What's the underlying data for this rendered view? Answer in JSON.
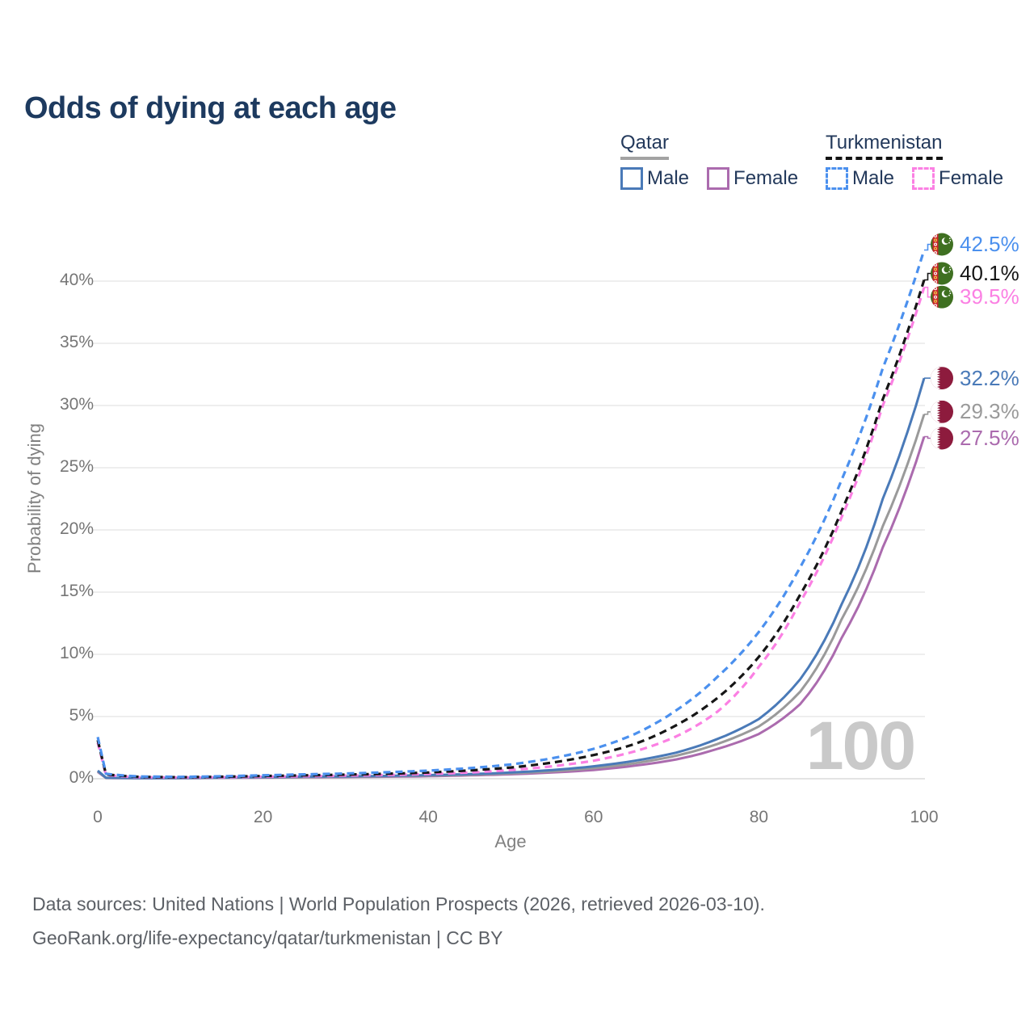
{
  "title": "Odds of dying at each age",
  "watermark": "100",
  "legend": {
    "groups": [
      {
        "label": "Qatar",
        "line_style": "solid",
        "underline_color": "#a3a3a3",
        "items": [
          {
            "label": "Male",
            "color": "#4a7ab8"
          },
          {
            "label": "Female",
            "color": "#ab6bae"
          }
        ]
      },
      {
        "label": "Turkmenistan",
        "line_style": "dashed",
        "underline_color": "#141414",
        "items": [
          {
            "label": "Male",
            "color": "#4b90ee"
          },
          {
            "label": "Female",
            "color": "#fb80e3"
          }
        ]
      }
    ]
  },
  "axes": {
    "y_title": "Probability of dying",
    "x_title": "Age",
    "y_ticks": [
      {
        "label": "0%",
        "value": 0
      },
      {
        "label": "5%",
        "value": 5
      },
      {
        "label": "10%",
        "value": 10
      },
      {
        "label": "15%",
        "value": 15
      },
      {
        "label": "20%",
        "value": 20
      },
      {
        "label": "25%",
        "value": 25
      },
      {
        "label": "30%",
        "value": 30
      },
      {
        "label": "35%",
        "value": 35
      },
      {
        "label": "40%",
        "value": 40
      }
    ],
    "x_ticks": [
      {
        "label": "0",
        "value": 0
      },
      {
        "label": "20",
        "value": 20
      },
      {
        "label": "40",
        "value": 40
      },
      {
        "label": "60",
        "value": 60
      },
      {
        "label": "80",
        "value": 80
      },
      {
        "label": "100",
        "value": 100
      }
    ]
  },
  "footer": {
    "line1": "Data sources: United Nations | World Population Prospects (2026, retrieved 2026-03-10).",
    "line2": "GeoRank.org/life-expectancy/qatar/turkmenistan | CC BY"
  },
  "chart_data": {
    "type": "line",
    "title": "Odds of dying at each age",
    "xlabel": "Age",
    "ylabel": "Probability of dying",
    "xlim": [
      0,
      100
    ],
    "ylim": [
      0,
      44
    ],
    "grid": "horizontal",
    "legend_position": "top-right",
    "x": [
      0,
      1,
      5,
      10,
      15,
      20,
      25,
      30,
      35,
      40,
      45,
      50,
      55,
      60,
      65,
      70,
      75,
      80,
      85,
      90,
      95,
      100
    ],
    "series": [
      {
        "name": "Turkmenistan Male",
        "flag": "turkmenistan",
        "dash": true,
        "color": "#4b90ee",
        "end_label": "42.5%",
        "end_value": 42.5,
        "label_dy": -7,
        "values": [
          3.35,
          0.4,
          0.18,
          0.15,
          0.2,
          0.28,
          0.35,
          0.42,
          0.52,
          0.65,
          0.85,
          1.15,
          1.65,
          2.4,
          3.6,
          5.5,
          8.2,
          11.8,
          17,
          24,
          33,
          42.5
        ]
      },
      {
        "name": "Turkmenistan Both sexes",
        "flag": "turkmenistan",
        "dash": true,
        "color": "#161616",
        "end_label": "40.1%",
        "end_value": 40.1,
        "label_dy": -8,
        "values": [
          3.1,
          0.35,
          0.15,
          0.12,
          0.16,
          0.22,
          0.27,
          0.33,
          0.4,
          0.5,
          0.67,
          0.9,
          1.3,
          1.9,
          2.8,
          4.3,
          6.5,
          9.8,
          14.8,
          21.5,
          30.5,
          40.1
        ]
      },
      {
        "name": "Turkmenistan Female",
        "flag": "turkmenistan",
        "dash": true,
        "color": "#fb80e3",
        "end_label": "39.5%",
        "end_value": 39.5,
        "label_dy": 12,
        "values": [
          2.9,
          0.3,
          0.12,
          0.1,
          0.12,
          0.16,
          0.2,
          0.25,
          0.3,
          0.38,
          0.5,
          0.7,
          1,
          1.45,
          2.2,
          3.4,
          5.4,
          9,
          14.2,
          21,
          30,
          39.5
        ]
      },
      {
        "name": "Qatar Male",
        "flag": "qatar",
        "dash": false,
        "color": "#4a7ab8",
        "end_label": "32.2%",
        "end_value": 32.2,
        "label_dy": 0,
        "values": [
          0.65,
          0.08,
          0.05,
          0.06,
          0.09,
          0.13,
          0.16,
          0.19,
          0.23,
          0.29,
          0.37,
          0.5,
          0.7,
          1,
          1.45,
          2.1,
          3.2,
          4.8,
          8,
          14,
          22.5,
          32.2
        ]
      },
      {
        "name": "Qatar Both sexes",
        "flag": "qatar",
        "dash": false,
        "color": "#9a9a9a",
        "end_label": "29.3%",
        "end_value": 29.3,
        "label_dy": -3,
        "values": [
          0.6,
          0.07,
          0.045,
          0.05,
          0.08,
          0.11,
          0.13,
          0.16,
          0.2,
          0.25,
          0.32,
          0.43,
          0.6,
          0.85,
          1.25,
          1.85,
          2.8,
          4.2,
          7,
          12.8,
          20.3,
          29.3
        ]
      },
      {
        "name": "Qatar Female",
        "flag": "qatar",
        "dash": false,
        "color": "#ab6bae",
        "end_label": "27.5%",
        "end_value": 27.5,
        "label_dy": 2,
        "values": [
          0.55,
          0.06,
          0.04,
          0.045,
          0.07,
          0.09,
          0.11,
          0.13,
          0.16,
          0.2,
          0.27,
          0.36,
          0.5,
          0.7,
          1.05,
          1.55,
          2.4,
          3.6,
          6,
          11.3,
          18.6,
          27.5
        ]
      }
    ]
  }
}
